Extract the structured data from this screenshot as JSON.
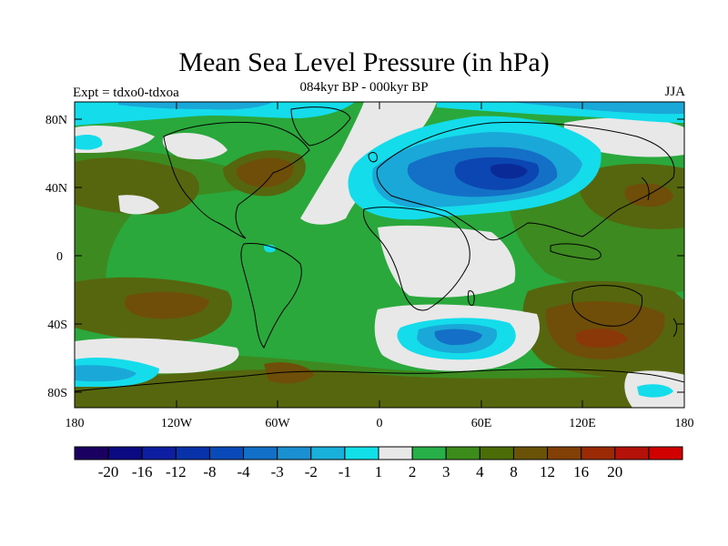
{
  "title": "Mean Sea Level Pressure (in hPa)",
  "subtitle": "084kyr BP - 000kyr BP",
  "experiment_label": "Expt = tdxo0-tdxoa",
  "season_label": "JJA",
  "lat_ticks": [
    "80N",
    "40N",
    "0",
    "40S",
    "80S"
  ],
  "lon_ticks": [
    "180",
    "120W",
    "60W",
    "0",
    "60E",
    "120E",
    "180"
  ],
  "colorbar": {
    "colors": [
      "#1a0060",
      "#0c0a82",
      "#0d1ea0",
      "#0832a8",
      "#0a4ab8",
      "#1270c8",
      "#1a90d0",
      "#1ab0dc",
      "#12e0e8",
      "#e8e8e8",
      "#28b048",
      "#3c8c1c",
      "#4c6c08",
      "#6a5206",
      "#824006",
      "#9a2a06",
      "#b41208",
      "#d00000"
    ],
    "labels": [
      "-20",
      "-16",
      "-12",
      "-8",
      "-4",
      "-3",
      "-2",
      "-1",
      "1",
      "2",
      "3",
      "4",
      "8",
      "12",
      "16",
      "20"
    ]
  },
  "map_colors": {
    "neutral": "#e8e8e8",
    "pos_light": "#2aa83c",
    "pos_mid": "#3d8a20",
    "pos_dark": "#56660e",
    "pos_brown": "#6f4e0a",
    "pos_deep": "#8a3808",
    "neg_cyan": "#14dcea",
    "neg_light": "#1aa8d8",
    "neg_mid": "#1470c6",
    "neg_dark": "#0c46b2",
    "neg_deep": "#0a2a98"
  }
}
